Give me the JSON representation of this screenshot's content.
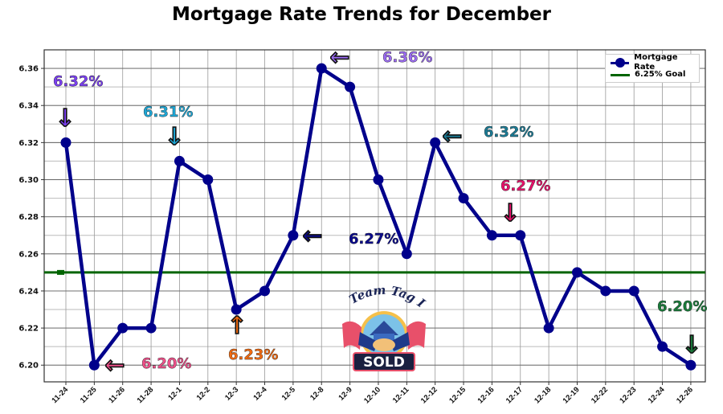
{
  "chart_data": {
    "type": "line",
    "title": "Mortgage Rate Trends for December",
    "xlabel": "",
    "ylabel": "",
    "categories": [
      "11-24",
      "11-25",
      "11-26",
      "11-28",
      "12-1",
      "12-2",
      "12-3",
      "12-4",
      "12-5",
      "12-8",
      "12-9",
      "12-10",
      "12-11",
      "12-12",
      "12-15",
      "12-16",
      "12-17",
      "12-18",
      "12-19",
      "12-22",
      "12-23",
      "12-24",
      "12-26"
    ],
    "series": [
      {
        "name": "Mortgage Rate",
        "color": "#00008B",
        "values": [
          6.32,
          6.2,
          6.22,
          6.22,
          6.31,
          6.3,
          6.23,
          6.24,
          6.27,
          6.36,
          6.35,
          6.3,
          6.26,
          6.32,
          6.29,
          6.27,
          6.27,
          6.22,
          6.25,
          6.24,
          6.24,
          6.21,
          6.2
        ]
      },
      {
        "name": "6.25% Goal",
        "color": "#006400",
        "value": 6.25
      }
    ],
    "ylim": [
      6.191,
      6.37
    ],
    "yticks": [
      "6.20",
      "6.22",
      "6.24",
      "6.26",
      "6.28",
      "6.30",
      "6.32",
      "6.34",
      "6.36"
    ],
    "grid": true,
    "legend_position": "top-right",
    "annotations": [
      {
        "label": "6.32%",
        "color": "#7B3FF2"
      },
      {
        "label": "6.20%",
        "color": "#F0508A"
      },
      {
        "label": "6.31%",
        "color": "#1EA7D6"
      },
      {
        "label": "6.23%",
        "color": "#F26A10"
      },
      {
        "label": "6.27%",
        "color": "#0A0A8C"
      },
      {
        "label": "6.36%",
        "color": "#9B6BF2"
      },
      {
        "label": "6.32%",
        "color": "#1B7A94"
      },
      {
        "label": "6.27%",
        "color": "#E8106A"
      },
      {
        "label": "6.20%",
        "color": "#1A7A3A"
      }
    ]
  },
  "logo": {
    "top_text": "Team Tag It",
    "badge_text": "SOLD"
  }
}
